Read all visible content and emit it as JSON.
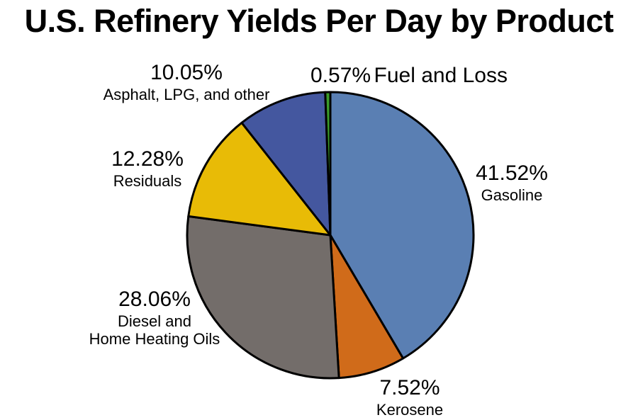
{
  "chart_data": {
    "type": "pie",
    "title": "U.S. Refinery Yields Per Day by Product",
    "slices": [
      {
        "label": "Gasoline",
        "value": 41.52,
        "value_label": "41.52%",
        "color": "#5a7fb3"
      },
      {
        "label": "Kerosene",
        "value": 7.52,
        "value_label": "7.52%",
        "color": "#d06b1a"
      },
      {
        "label": "Diesel and Home Heating Oils",
        "value": 28.06,
        "value_label": "28.06%",
        "color": "#736d6a"
      },
      {
        "label": "Residuals",
        "value": 12.28,
        "value_label": "12.28%",
        "color": "#e8bb06"
      },
      {
        "label": "Asphalt, LPG, and other",
        "value": 10.05,
        "value_label": "10.05%",
        "color": "#44579f"
      },
      {
        "label": "Fuel and Loss",
        "value": 0.57,
        "value_label": "0.57%",
        "color": "#3a9a2a"
      }
    ],
    "start_angle_deg": 0,
    "direction": "clockwise",
    "legend": "none (labels beside slices)"
  },
  "labels": {
    "diesel_line1": "Diesel and",
    "diesel_line2": "Home Heating Oils"
  }
}
